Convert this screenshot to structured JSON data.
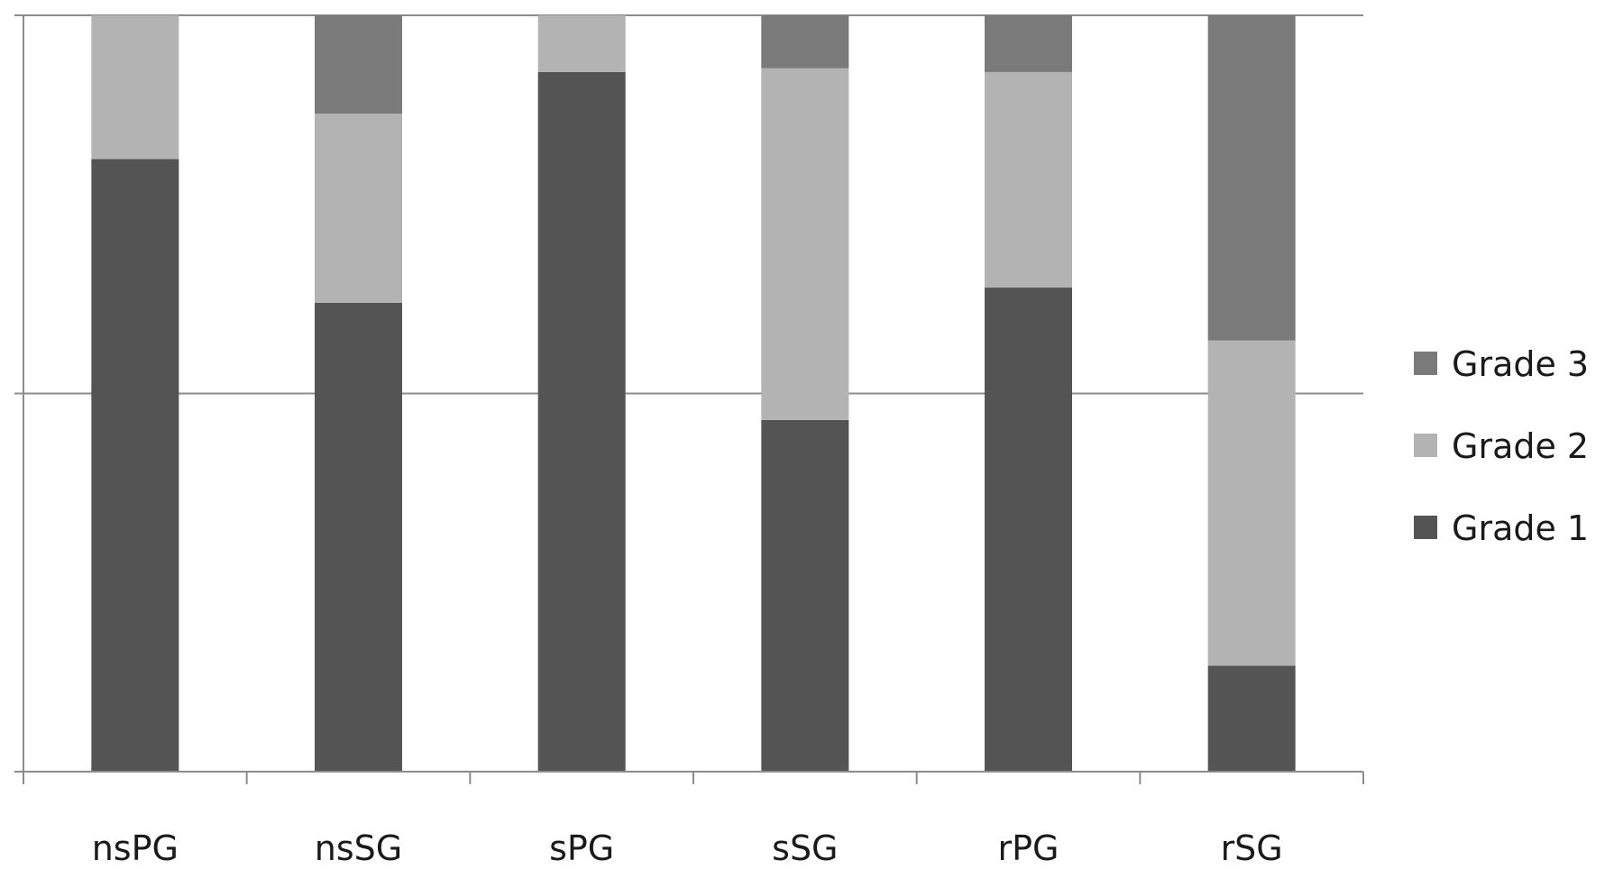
{
  "chart_data": {
    "type": "bar",
    "stacked": true,
    "categories": [
      "nsPG",
      "nsSG",
      "sPG",
      "sSG",
      "rPG",
      "rSG"
    ],
    "series": [
      {
        "name": "Grade 1",
        "values": [
          81,
          62,
          92.5,
          46.5,
          64,
          14
        ],
        "color": "#545454"
      },
      {
        "name": "Grade 2",
        "values": [
          19,
          25,
          7.5,
          46.5,
          28.5,
          43
        ],
        "color": "#b3b3b3"
      },
      {
        "name": "Grade 3",
        "values": [
          0,
          13,
          0,
          7,
          7.5,
          43
        ],
        "color": "#7a7a7a"
      }
    ],
    "ylim": [
      0,
      100
    ],
    "grid": true,
    "legend": "right"
  }
}
